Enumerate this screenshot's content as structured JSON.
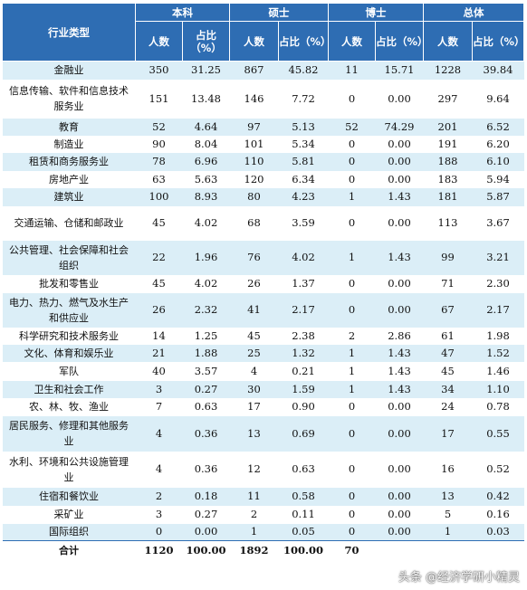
{
  "header": {
    "category": "行业类型",
    "groups": [
      "本科",
      "硕士",
      "博士",
      "总体"
    ],
    "count_label": "人数",
    "ratio_label": "占比（%）"
  },
  "rows": [
    {
      "name": "金融业",
      "v": [
        "350",
        "31.25",
        "867",
        "45.82",
        "11",
        "15.71",
        "1228",
        "39.84"
      ]
    },
    {
      "name": "信息传输、软件和信息技术服务业",
      "v": [
        "151",
        "13.48",
        "146",
        "7.72",
        "0",
        "0.00",
        "297",
        "9.64"
      ]
    },
    {
      "name": "教育",
      "v": [
        "52",
        "4.64",
        "97",
        "5.13",
        "52",
        "74.29",
        "201",
        "6.52"
      ]
    },
    {
      "name": "制造业",
      "v": [
        "90",
        "8.04",
        "101",
        "5.34",
        "0",
        "0.00",
        "191",
        "6.20"
      ]
    },
    {
      "name": "租赁和商务服务业",
      "v": [
        "78",
        "6.96",
        "110",
        "5.81",
        "0",
        "0.00",
        "188",
        "6.10"
      ]
    },
    {
      "name": "房地产业",
      "v": [
        "63",
        "5.63",
        "120",
        "6.34",
        "0",
        "0.00",
        "183",
        "5.94"
      ]
    },
    {
      "name": "建筑业",
      "v": [
        "100",
        "8.93",
        "80",
        "4.23",
        "1",
        "1.43",
        "181",
        "5.87"
      ]
    },
    {
      "name": "交通运输、仓储和邮政业",
      "v": [
        "45",
        "4.02",
        "68",
        "3.59",
        "0",
        "0.00",
        "113",
        "3.67"
      ]
    },
    {
      "name": "公共管理、社会保障和社会组织",
      "v": [
        "22",
        "1.96",
        "76",
        "4.02",
        "1",
        "1.43",
        "99",
        "3.21"
      ]
    },
    {
      "name": "批发和零售业",
      "v": [
        "45",
        "4.02",
        "26",
        "1.37",
        "0",
        "0.00",
        "71",
        "2.30"
      ]
    },
    {
      "name": "电力、热力、燃气及水生产和供应业",
      "v": [
        "26",
        "2.32",
        "41",
        "2.17",
        "0",
        "0.00",
        "67",
        "2.17"
      ]
    },
    {
      "name": "科学研究和技术服务业",
      "v": [
        "14",
        "1.25",
        "45",
        "2.38",
        "2",
        "2.86",
        "61",
        "1.98"
      ]
    },
    {
      "name": "文化、体育和娱乐业",
      "v": [
        "21",
        "1.88",
        "25",
        "1.32",
        "1",
        "1.43",
        "47",
        "1.52"
      ]
    },
    {
      "name": "军队",
      "v": [
        "40",
        "3.57",
        "4",
        "0.21",
        "1",
        "1.43",
        "45",
        "1.46"
      ]
    },
    {
      "name": "卫生和社会工作",
      "v": [
        "3",
        "0.27",
        "30",
        "1.59",
        "1",
        "1.43",
        "34",
        "1.10"
      ]
    },
    {
      "name": "农、林、牧、渔业",
      "v": [
        "7",
        "0.63",
        "17",
        "0.90",
        "0",
        "0.00",
        "24",
        "0.78"
      ]
    },
    {
      "name": "居民服务、修理和其他服务业",
      "v": [
        "4",
        "0.36",
        "13",
        "0.69",
        "0",
        "0.00",
        "17",
        "0.55"
      ]
    },
    {
      "name": "水利、环境和公共设施管理业",
      "v": [
        "4",
        "0.36",
        "12",
        "0.63",
        "0",
        "0.00",
        "16",
        "0.52"
      ]
    },
    {
      "name": "住宿和餐饮业",
      "v": [
        "2",
        "0.18",
        "11",
        "0.58",
        "0",
        "0.00",
        "13",
        "0.42"
      ]
    },
    {
      "name": "采矿业",
      "v": [
        "3",
        "0.27",
        "2",
        "0.11",
        "0",
        "0.00",
        "5",
        "0.16"
      ]
    },
    {
      "name": "国际组织",
      "v": [
        "0",
        "0.00",
        "1",
        "0.05",
        "0",
        "0.00",
        "1",
        "0.03"
      ]
    }
  ],
  "total": {
    "name": "合计",
    "v": [
      "1120",
      "100.00",
      "1892",
      "100.00",
      "70",
      "",
      "",
      ""
    ]
  },
  "watermark": "头条 @经济学研小精灵",
  "colors": {
    "header_bg": "#2e6db3",
    "stripe_bg": "#dbeef7"
  }
}
